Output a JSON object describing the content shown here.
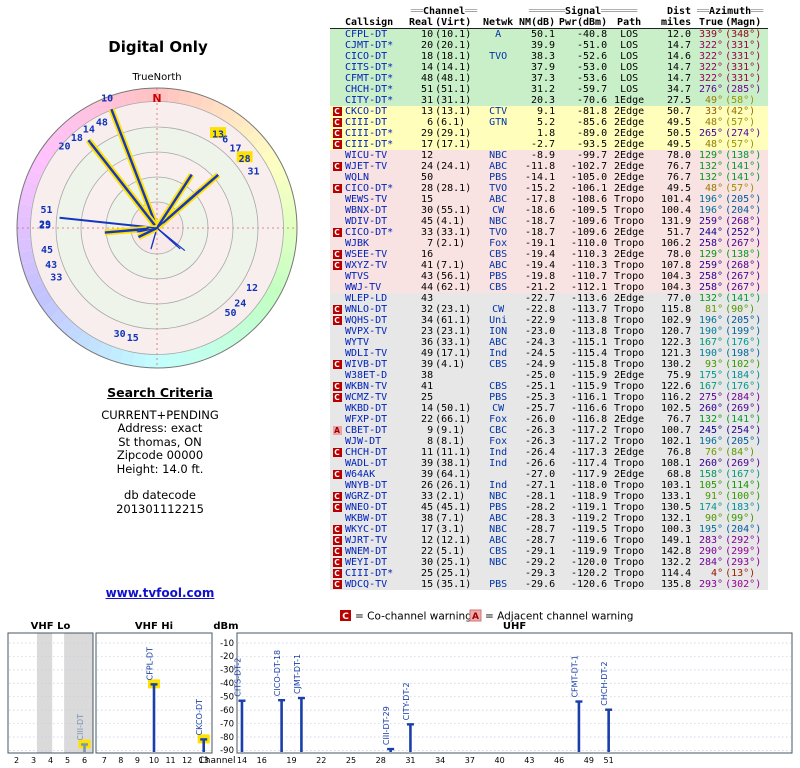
{
  "page": {
    "title": "Digital Only"
  },
  "criteria": {
    "heading": "Search Criteria",
    "lines": [
      "CURRENT+PENDING",
      "Address: exact",
      "St thomas, ON",
      "Zipcode 00000",
      "Height: 14.0 ft."
    ],
    "datecode_label": "db datecode",
    "datecode": "201301112215"
  },
  "link_text": "www.tvfool.com",
  "legend": {
    "co": {
      "symbol": "C",
      "text": "= Co-channel warning",
      "color": "#bb0000"
    },
    "adj": {
      "symbol": "A",
      "text": "= Adjacent channel warning",
      "color": "#f2aaaa"
    }
  },
  "table_header": {
    "deco_ch": "══",
    "channel_word": "Channel",
    "deco_sig": "══════",
    "signal_word": "Signal",
    "dist_word": "Dist",
    "deco_az": "══",
    "azimuth_word": "Azimuth",
    "col_callsign": "Callsign",
    "col_real": "Real",
    "col_virt": "(Virt)",
    "col_netwk": "Netwk",
    "col_nm": "NM(dB)",
    "col_pwr": "Pwr(dBm)",
    "col_path": "Path",
    "col_miles": "miles",
    "col_true": "True",
    "col_magn": "(Magn)"
  },
  "chart_data": [
    {
      "type": "table",
      "name": "station-list",
      "columns": [
        "warning",
        "callsign",
        "real_ch",
        "virtual_ch",
        "network",
        "nm_db",
        "pwr_dbm",
        "path",
        "dist_miles",
        "azimuth_true",
        "azimuth_magn",
        "tier"
      ],
      "rows": [
        [
          "",
          "CFPL-DT",
          "10",
          "(10.1)",
          "A",
          "50.1",
          "-40.8",
          "LOS",
          "12.0",
          339,
          348,
          "green"
        ],
        [
          "",
          "CJMT-DT*",
          "20",
          "(20.1)",
          "",
          "39.9",
          "-51.0",
          "LOS",
          "14.7",
          322,
          331,
          "green"
        ],
        [
          "",
          "CICO-DT",
          "18",
          "(18.1)",
          "TVO",
          "38.3",
          "-52.6",
          "LOS",
          "14.6",
          322,
          331,
          "green"
        ],
        [
          "",
          "CITS-DT*",
          "14",
          "(14.1)",
          "",
          "37.9",
          "-53.0",
          "LOS",
          "14.7",
          322,
          331,
          "green"
        ],
        [
          "",
          "CFMT-DT*",
          "48",
          "(48.1)",
          "",
          "37.3",
          "-53.6",
          "LOS",
          "14.7",
          322,
          331,
          "green"
        ],
        [
          "",
          "CHCH-DT*",
          "51",
          "(51.1)",
          "",
          "31.2",
          "-59.7",
          "LOS",
          "34.7",
          276,
          285,
          "green"
        ],
        [
          "",
          "CITY-DT*",
          "31",
          "(31.1)",
          "",
          "20.3",
          "-70.6",
          "1Edge",
          "27.5",
          49,
          58,
          "green"
        ],
        [
          "C",
          "CKCO-DT",
          "13",
          "(13.1)",
          "CTV",
          "9.1",
          "-81.8",
          "2Edge",
          "50.7",
          33,
          42,
          "yellow"
        ],
        [
          "C",
          "CIII-DT",
          "6",
          "(6.1)",
          "GTN",
          "5.2",
          "-85.6",
          "2Edge",
          "49.5",
          48,
          57,
          "yellow"
        ],
        [
          "C",
          "CIII-DT*",
          "29",
          "(29.1)",
          "",
          "1.8",
          "-89.0",
          "2Edge",
          "50.5",
          265,
          274,
          "yellow"
        ],
        [
          "C",
          "CIII-DT*",
          "17",
          "(17.1)",
          "",
          "-2.7",
          "-93.5",
          "2Edge",
          "49.5",
          48,
          57,
          "yellow"
        ],
        [
          "",
          "WICU-TV",
          "12",
          "",
          "NBC",
          "-8.9",
          "-99.7",
          "2Edge",
          "78.0",
          129,
          138,
          "pink"
        ],
        [
          "C",
          "WJET-TV",
          "24",
          "(24.1)",
          "ABC",
          "-11.8",
          "-102.7",
          "2Edge",
          "76.7",
          132,
          141,
          "pink"
        ],
        [
          "",
          "WQLN",
          "50",
          "",
          "PBS",
          "-14.1",
          "-105.0",
          "2Edge",
          "76.7",
          132,
          141,
          "pink"
        ],
        [
          "C",
          "CICO-DT*",
          "28",
          "(28.1)",
          "TVO",
          "-15.2",
          "-106.1",
          "2Edge",
          "49.5",
          48,
          57,
          "pink"
        ],
        [
          "",
          "WEWS-TV",
          "15",
          "",
          "ABC",
          "-17.8",
          "-108.6",
          "Tropo",
          "101.4",
          196,
          205,
          "pink"
        ],
        [
          "",
          "WBNX-DT",
          "30",
          "(55.1)",
          "CW",
          "-18.6",
          "-109.5",
          "Tropo",
          "100.4",
          196,
          204,
          "pink"
        ],
        [
          "",
          "WDIV-DT",
          "45",
          "(4.1)",
          "NBC",
          "-18.7",
          "-109.6",
          "Tropo",
          "131.9",
          259,
          268,
          "pink"
        ],
        [
          "C",
          "CICO-DT*",
          "33",
          "(33.1)",
          "TVO",
          "-18.7",
          "-109.6",
          "2Edge",
          "51.7",
          244,
          252,
          "pink"
        ],
        [
          "",
          "WJBK",
          "7",
          "(2.1)",
          "Fox",
          "-19.1",
          "-110.0",
          "Tropo",
          "106.2",
          258,
          267,
          "pink"
        ],
        [
          "C",
          "WSEE-TV",
          "16",
          "",
          "CBS",
          "-19.4",
          "-110.3",
          "2Edge",
          "78.0",
          129,
          138,
          "pink"
        ],
        [
          "C",
          "WXYZ-TV",
          "41",
          "(7.1)",
          "ABC",
          "-19.4",
          "-110.3",
          "Tropo",
          "107.8",
          259,
          268,
          "pink"
        ],
        [
          "",
          "WTVS",
          "43",
          "(56.1)",
          "PBS",
          "-19.8",
          "-110.7",
          "Tropo",
          "104.3",
          258,
          267,
          "pink"
        ],
        [
          "",
          "WWJ-TV",
          "44",
          "(62.1)",
          "CBS",
          "-21.2",
          "-112.1",
          "Tropo",
          "104.3",
          258,
          267,
          "pink"
        ],
        [
          "",
          "WLEP-LD",
          "43",
          "",
          "",
          "-22.7",
          "-113.6",
          "2Edge",
          "77.0",
          132,
          141,
          "gray"
        ],
        [
          "C",
          "WNLO-DT",
          "32",
          "(23.1)",
          "CW",
          "-22.8",
          "-113.7",
          "Tropo",
          "115.8",
          81,
          90,
          "gray"
        ],
        [
          "C",
          "WQHS-DT",
          "34",
          "(61.1)",
          "Uni",
          "-22.9",
          "-113.8",
          "Tropo",
          "102.9",
          196,
          205,
          "gray"
        ],
        [
          "",
          "WVPX-TV",
          "23",
          "(23.1)",
          "ION",
          "-23.0",
          "-113.8",
          "Tropo",
          "120.7",
          190,
          199,
          "gray"
        ],
        [
          "",
          "WYTV",
          "36",
          "(33.1)",
          "ABC",
          "-24.3",
          "-115.1",
          "Tropo",
          "122.3",
          167,
          176,
          "gray"
        ],
        [
          "",
          "WDLI-TV",
          "49",
          "(17.1)",
          "Ind",
          "-24.5",
          "-115.4",
          "Tropo",
          "121.3",
          190,
          198,
          "gray"
        ],
        [
          "C",
          "WIVB-DT",
          "39",
          "(4.1)",
          "CBS",
          "-24.9",
          "-115.8",
          "Tropo",
          "130.2",
          93,
          102,
          "gray"
        ],
        [
          "",
          "W38ET-D",
          "38",
          "",
          "",
          "-25.0",
          "-115.9",
          "2Edge",
          "75.9",
          175,
          184,
          "gray"
        ],
        [
          "C",
          "WKBN-TV",
          "41",
          "",
          "CBS",
          "-25.1",
          "-115.9",
          "Tropo",
          "122.6",
          167,
          176,
          "gray"
        ],
        [
          "C",
          "WCMZ-TV",
          "25",
          "",
          "PBS",
          "-25.3",
          "-116.1",
          "Tropo",
          "116.2",
          275,
          284,
          "gray"
        ],
        [
          "",
          "WKBD-DT",
          "14",
          "(50.1)",
          "CW",
          "-25.7",
          "-116.6",
          "Tropo",
          "102.5",
          260,
          269,
          "gray"
        ],
        [
          "",
          "WFXP-DT",
          "22",
          "(66.1)",
          "Fox",
          "-26.0",
          "-116.8",
          "2Edge",
          "76.7",
          132,
          141,
          "gray"
        ],
        [
          "A",
          "CBET-DT",
          "9",
          "(9.1)",
          "CBC",
          "-26.3",
          "-117.2",
          "Tropo",
          "100.7",
          245,
          254,
          "gray"
        ],
        [
          "",
          "WJW-DT",
          "8",
          "(8.1)",
          "Fox",
          "-26.3",
          "-117.2",
          "Tropo",
          "102.1",
          196,
          205,
          "gray"
        ],
        [
          "C",
          "CHCH-DT",
          "11",
          "(11.1)",
          "Ind",
          "-26.4",
          "-117.3",
          "2Edge",
          "76.8",
          76,
          84,
          "gray"
        ],
        [
          "",
          "WADL-DT",
          "39",
          "(38.1)",
          "Ind",
          "-26.6",
          "-117.4",
          "Tropo",
          "108.1",
          260,
          269,
          "gray"
        ],
        [
          "C",
          "W64AK",
          "39",
          "(64.1)",
          "",
          "-27.0",
          "-117.9",
          "2Edge",
          "68.8",
          158,
          167,
          "gray"
        ],
        [
          "",
          "WNYB-DT",
          "26",
          "(26.1)",
          "Ind",
          "-27.1",
          "-118.0",
          "Tropo",
          "103.1",
          105,
          114,
          "gray"
        ],
        [
          "C",
          "WGRZ-DT",
          "33",
          "(2.1)",
          "NBC",
          "-28.1",
          "-118.9",
          "Tropo",
          "133.1",
          91,
          100,
          "gray"
        ],
        [
          "C",
          "WNEO-DT",
          "45",
          "(45.1)",
          "PBS",
          "-28.2",
          "-119.1",
          "Tropo",
          "130.5",
          174,
          183,
          "gray"
        ],
        [
          "",
          "WKBW-DT",
          "38",
          "(7.1)",
          "ABC",
          "-28.3",
          "-119.2",
          "Tropo",
          "132.1",
          90,
          99,
          "gray"
        ],
        [
          "C",
          "WKYC-DT",
          "17",
          "(3.1)",
          "NBC",
          "-28.7",
          "-119.5",
          "Tropo",
          "100.3",
          195,
          204,
          "gray"
        ],
        [
          "C",
          "WJRT-TV",
          "12",
          "(12.1)",
          "ABC",
          "-28.7",
          "-119.6",
          "Tropo",
          "149.1",
          283,
          292,
          "gray"
        ],
        [
          "C",
          "WNEM-DT",
          "22",
          "(5.1)",
          "CBS",
          "-29.1",
          "-119.9",
          "Tropo",
          "142.8",
          290,
          299,
          "gray"
        ],
        [
          "C",
          "WEYI-DT",
          "30",
          "(25.1)",
          "NBC",
          "-29.2",
          "-120.0",
          "Tropo",
          "132.2",
          284,
          293,
          "gray"
        ],
        [
          "C",
          "CIII-DT*",
          "25",
          "(25.1)",
          "",
          "-29.3",
          "-120.2",
          "Tropo",
          "114.4",
          4,
          13,
          "gray"
        ],
        [
          "C",
          "WDCQ-TV",
          "15",
          "(35.1)",
          "PBS",
          "-29.6",
          "-120.6",
          "Tropo",
          "135.8",
          293,
          302,
          "gray"
        ]
      ]
    },
    {
      "type": "radar",
      "name": "azimuth-plot",
      "title": "Digital Only",
      "north_label": "TrueNorth",
      "n_marker": "N",
      "stations": [
        {
          "ch": 10,
          "az": 339,
          "nm": 50.1,
          "strong": true
        },
        {
          "ch": 20,
          "az": 322,
          "nm": 39.9,
          "strong": true
        },
        {
          "ch": 18,
          "az": 322,
          "nm": 38.3,
          "strong": true
        },
        {
          "ch": 14,
          "az": 322,
          "nm": 37.9,
          "strong": true
        },
        {
          "ch": 48,
          "az": 322,
          "nm": 37.3,
          "strong": true
        },
        {
          "ch": 51,
          "az": 276,
          "nm": 31.2,
          "strong": false
        },
        {
          "ch": 31,
          "az": 49,
          "nm": 20.3,
          "strong": true
        },
        {
          "ch": 13,
          "az": 33,
          "nm": 9.1,
          "strong": true,
          "hl": true
        },
        {
          "ch": 6,
          "az": 48,
          "nm": 5.2,
          "strong": false
        },
        {
          "ch": 29,
          "az": 265,
          "nm": 1.8,
          "strong": true
        },
        {
          "ch": 17,
          "az": 48,
          "nm": -2.7,
          "strong": false
        },
        {
          "ch": 12,
          "az": 129,
          "nm": -8.9,
          "strong": false
        },
        {
          "ch": 24,
          "az": 132,
          "nm": -11.8,
          "strong": false
        },
        {
          "ch": 50,
          "az": 132,
          "nm": -14.1,
          "strong": false
        },
        {
          "ch": 28,
          "az": 48,
          "nm": -15.2,
          "strong": false,
          "hl": true
        },
        {
          "ch": 15,
          "az": 196,
          "nm": -17.8,
          "strong": false
        },
        {
          "ch": 30,
          "az": 196,
          "nm": -18.6,
          "strong": false
        },
        {
          "ch": 45,
          "az": 259,
          "nm": -18.7,
          "strong": false
        },
        {
          "ch": 33,
          "az": 244,
          "nm": -18.7,
          "strong": true
        },
        {
          "ch": 43,
          "az": 258,
          "nm": -19.8,
          "strong": false
        },
        {
          "ch": 25,
          "az": 275,
          "nm": -25.3,
          "strong": false
        }
      ]
    },
    {
      "type": "bar",
      "name": "signal-strength-plot",
      "ylabel": "dBm",
      "xlabel": "Channel",
      "ylim": [
        -90,
        -10
      ],
      "yticks": [
        -10,
        -20,
        -30,
        -40,
        -50,
        -60,
        -70,
        -80,
        -90
      ],
      "bands": [
        {
          "key": "lo",
          "label": "VHF Lo",
          "ch_min": 2,
          "ch_max": 6,
          "ticks": [
            2,
            3,
            4,
            5,
            6
          ]
        },
        {
          "key": "hi",
          "label": "VHF Hi",
          "ch_min": 7,
          "ch_max": 13,
          "ticks": [
            7,
            8,
            9,
            10,
            11,
            12,
            13
          ]
        },
        {
          "key": "uhf",
          "label": "UHF",
          "ch_min": 14,
          "ch_max": 69,
          "ticks": [
            14,
            16,
            19,
            22,
            25,
            28,
            31,
            34,
            37,
            40,
            43,
            46,
            49,
            51
          ]
        }
      ],
      "shaded": [
        {
          "band": "lo",
          "from_ch": 3.7,
          "to_ch": 4.6
        },
        {
          "band": "lo",
          "from_ch": 5.3,
          "to_ch": 7.0
        }
      ],
      "bars": [
        {
          "label": "CIII-DT",
          "band": "lo",
          "ch": 6,
          "dbm": -85.6,
          "muted": true,
          "hl": true
        },
        {
          "label": "CFPL-DT",
          "band": "hi",
          "ch": 10,
          "dbm": -40.8,
          "hl": true
        },
        {
          "label": "CKCO-DT",
          "band": "hi",
          "ch": 13,
          "dbm": -81.8,
          "hl": true
        },
        {
          "label": "CITS-DT-2",
          "band": "uhf",
          "ch": 14,
          "dbm": -53.0
        },
        {
          "label": "CICO-DT-18",
          "band": "uhf",
          "ch": 18,
          "dbm": -52.6
        },
        {
          "label": "CJMT-DT-1",
          "band": "uhf",
          "ch": 20,
          "dbm": -51.0
        },
        {
          "label": "CIII-DT-29",
          "band": "uhf",
          "ch": 29,
          "dbm": -89.0
        },
        {
          "label": "CITY-DT-2",
          "band": "uhf",
          "ch": 31,
          "dbm": -70.6
        },
        {
          "label": "CFMT-DT-1",
          "band": "uhf",
          "ch": 48,
          "dbm": -53.6
        },
        {
          "label": "CHCH-DT-2",
          "band": "uhf",
          "ch": 51,
          "dbm": -59.7
        }
      ]
    }
  ]
}
